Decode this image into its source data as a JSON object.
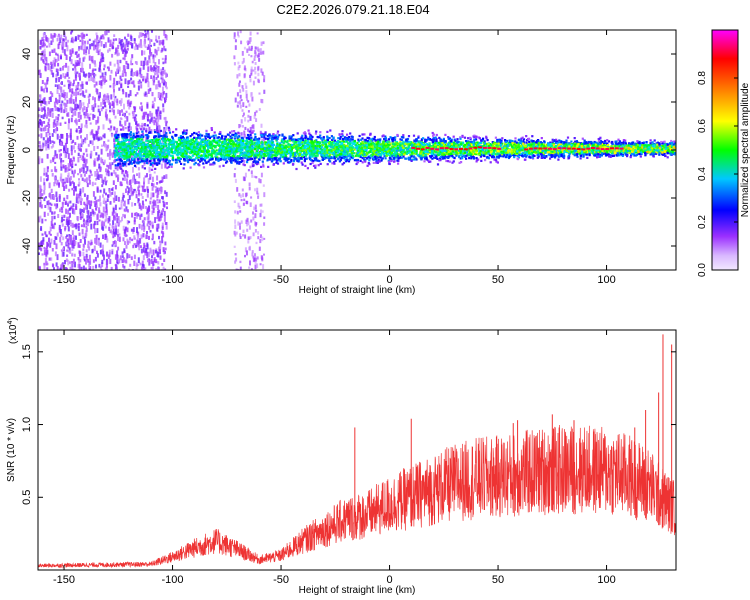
{
  "title": "C2E2.2026.079.21.18.E04",
  "chart_data": [
    {
      "type": "heatmap",
      "name": "spectrogram",
      "xlabel": "Height of straight line (km)",
      "ylabel": "Frequency (Hz)",
      "xlim": [
        -162,
        132
      ],
      "ylim": [
        -50,
        50
      ],
      "x_ticks": [
        -150,
        -100,
        -50,
        0,
        50,
        100
      ],
      "y_ticks": [
        -40,
        -20,
        0,
        20,
        40
      ],
      "colorbar": {
        "label": "Normalized spectral amplitude",
        "range": [
          0,
          1
        ],
        "ticks": [
          "0.0",
          "0.2",
          "0.4",
          "0.6",
          "0.8"
        ],
        "tick_values": [
          0,
          0.2,
          0.4,
          0.6,
          0.8
        ],
        "colors": [
          "#f2e8ff",
          "#9b30ff",
          "#0000ff",
          "#00e0ff",
          "#00ff00",
          "#ffff00",
          "#ff7f00",
          "#ff0000",
          "#ff00ff"
        ]
      },
      "noise_band": {
        "x_from": -162,
        "x_to": -103,
        "freq_from": -50,
        "freq_to": 50
      },
      "secondary_band": {
        "x_from": -72,
        "x_to": -58
      },
      "signal_band": {
        "x_from": -127,
        "x_to": 132,
        "center_freq": 1,
        "half_width_start": 7,
        "half_width_end": 2.5
      },
      "peak_segments": [
        [
          10,
          50
        ],
        [
          62,
          108
        ]
      ]
    },
    {
      "type": "line",
      "name": "snr",
      "xlabel": "Height of straight line (km)",
      "ylabel": "SNR (10 * v/v)",
      "scale_label": "(x10",
      "scale_exp": "4",
      "scale_close": ")",
      "xlim": [
        -162,
        132
      ],
      "ylim": [
        0,
        1.65
      ],
      "x_ticks": [
        -150,
        -100,
        -50,
        0,
        50,
        100
      ],
      "y_ticks": [
        "0.5",
        "1.0",
        "1.5"
      ],
      "y_tick_values": [
        0.5,
        1.0,
        1.5
      ],
      "color": "#ee3333",
      "envelope": {
        "x": [
          -162,
          -110,
          -100,
          -90,
          -80,
          -70,
          -60,
          -50,
          -40,
          -30,
          -20,
          -10,
          0,
          10,
          20,
          30,
          40,
          50,
          60,
          70,
          80,
          90,
          100,
          110,
          120,
          125,
          132
        ],
        "y": [
          0.03,
          0.04,
          0.09,
          0.15,
          0.2,
          0.14,
          0.07,
          0.1,
          0.2,
          0.28,
          0.35,
          0.38,
          0.45,
          0.5,
          0.55,
          0.6,
          0.63,
          0.64,
          0.66,
          0.68,
          0.69,
          0.69,
          0.68,
          0.65,
          0.58,
          0.5,
          0.42
        ]
      },
      "spikes": [
        {
          "x": 10,
          "y": 1.04
        },
        {
          "x": -16,
          "y": 0.98
        },
        {
          "x": 57,
          "y": 1.01
        },
        {
          "x": 59,
          "y": 1.03
        },
        {
          "x": 75,
          "y": 1.07
        },
        {
          "x": 85,
          "y": 1.03
        },
        {
          "x": 118,
          "y": 1.1
        },
        {
          "x": 113,
          "y": 0.98
        },
        {
          "x": 124,
          "y": 1.22
        },
        {
          "x": 126,
          "y": 1.62
        },
        {
          "x": 130,
          "y": 1.55
        }
      ]
    }
  ]
}
